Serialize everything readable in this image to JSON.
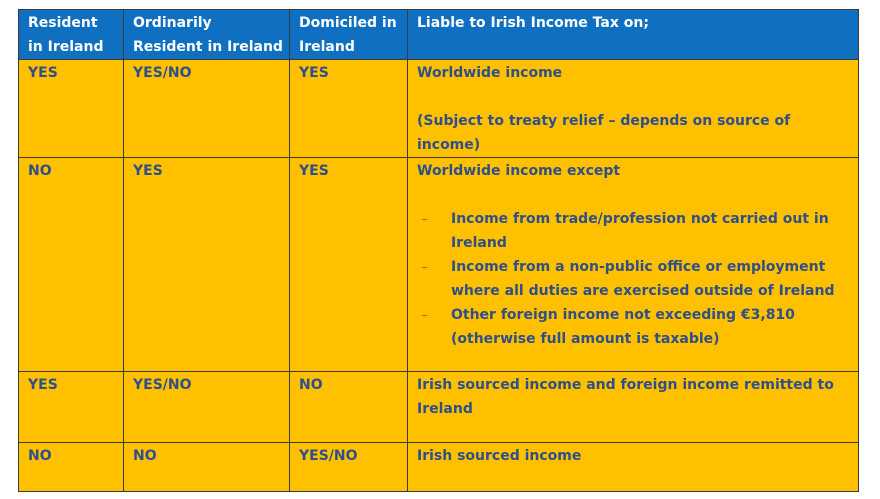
{
  "table": {
    "header": [
      "Resident in Ireland",
      "Ordinarily Resident in Ireland",
      "Domiciled in Ireland",
      "Liable to Irish Income Tax on;"
    ],
    "rows": [
      {
        "cells": [
          "YES",
          "YES/NO",
          "YES"
        ],
        "liable": {
          "text": "Worldwide income",
          "note": "(Subject to treaty relief – depends on source of income)"
        }
      },
      {
        "cells": [
          "NO",
          "YES",
          "YES"
        ],
        "liable": {
          "text": "Worldwide income except",
          "items": [
            "Income from trade/profession not carried out in Ireland",
            "Income from a non-public office or employment where all duties are exercised outside of Ireland",
            "Other foreign income not exceeding €3,810 (otherwise full amount is taxable)"
          ]
        }
      },
      {
        "cells": [
          "YES",
          "YES/NO",
          "NO"
        ],
        "liable": {
          "text": "Irish sourced income and foreign income remitted to Ireland"
        }
      },
      {
        "cells": [
          "NO",
          "NO",
          "YES/NO"
        ],
        "liable": {
          "text": "Irish sourced income"
        }
      }
    ]
  }
}
